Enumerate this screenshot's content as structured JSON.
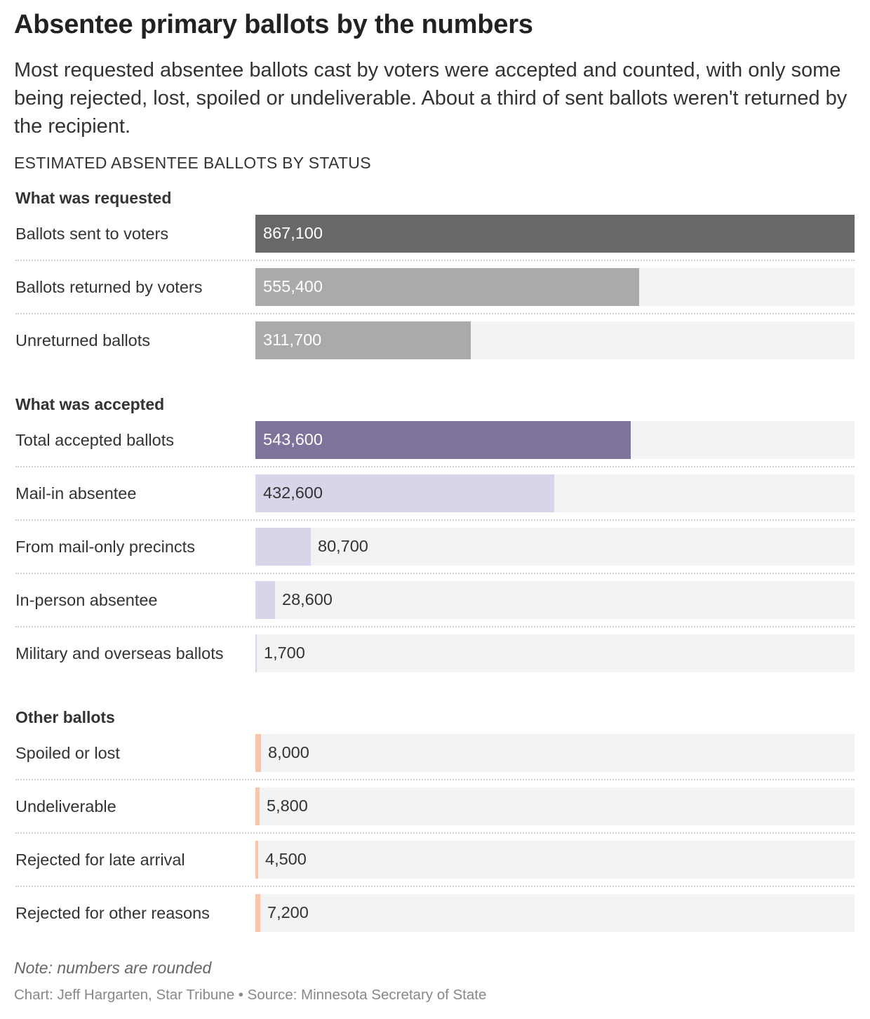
{
  "title": "Absentee primary ballots by the numbers",
  "subtitle": "Most requested absentee ballots cast by voters were accepted and counted, with only some being rejected, lost, spoiled or undeliverable. About a third of sent ballots weren't returned by the recipient.",
  "kicker": "ESTIMATED ABSENTEE BALLOTS BY STATUS",
  "note": "Note: numbers are rounded",
  "credit": "Chart: Jeff Hargarten, Star Tribune • Source: Minnesota Secretary of State",
  "chart_data": {
    "type": "bar",
    "orientation": "horizontal",
    "xlim": [
      0,
      867100
    ],
    "grid": false,
    "groups": [
      {
        "name": "What was requested",
        "items": [
          {
            "label": "Ballots sent to voters",
            "value": 867100,
            "display": "867,100",
            "color": "#686868",
            "text": "light"
          },
          {
            "label": "Ballots returned by voters",
            "value": 555400,
            "display": "555,400",
            "color": "#aaaaaa",
            "text": "light"
          },
          {
            "label": "Unreturned ballots",
            "value": 311700,
            "display": "311,700",
            "color": "#aaaaaa",
            "text": "light"
          }
        ]
      },
      {
        "name": "What was accepted",
        "items": [
          {
            "label": "Total accepted ballots",
            "value": 543600,
            "display": "543,600",
            "color": "#7f739c",
            "text": "light"
          },
          {
            "label": "Mail-in absentee",
            "value": 432600,
            "display": "432,600",
            "color": "#d9d4ea",
            "text": "dark"
          },
          {
            "label": "From mail-only precincts",
            "value": 80700,
            "display": "80,700",
            "color": "#d9d4ea",
            "text": "dark"
          },
          {
            "label": "In-person absentee",
            "value": 28600,
            "display": "28,600",
            "color": "#d9d4ea",
            "text": "dark"
          },
          {
            "label": "Military and overseas ballots",
            "value": 1700,
            "display": "1,700",
            "color": "#d9d4ea",
            "text": "dark"
          }
        ]
      },
      {
        "name": "Other ballots",
        "items": [
          {
            "label": "Spoiled or lost",
            "value": 8000,
            "display": "8,000",
            "color": "#f5c6ab",
            "text": "dark"
          },
          {
            "label": "Undeliverable",
            "value": 5800,
            "display": "5,800",
            "color": "#f5c6ab",
            "text": "dark"
          },
          {
            "label": "Rejected for late arrival",
            "value": 4500,
            "display": "4,500",
            "color": "#f5c6ab",
            "text": "dark"
          },
          {
            "label": "Rejected for other reasons",
            "value": 7200,
            "display": "7,200",
            "color": "#f5c6ab",
            "text": "dark"
          }
        ]
      }
    ]
  }
}
